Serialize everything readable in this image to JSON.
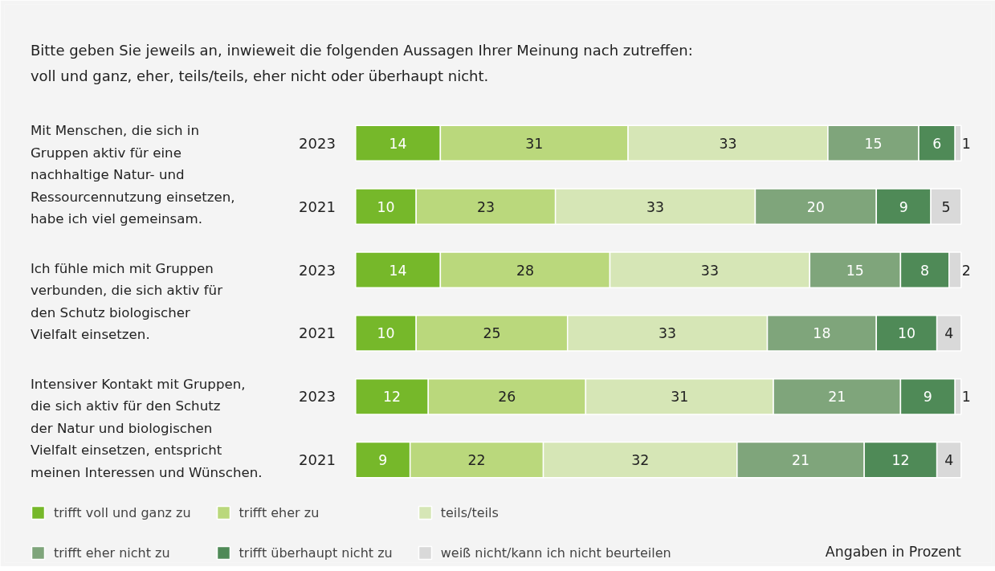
{
  "chart_data": {
    "type": "bar",
    "orientation": "horizontal",
    "stacked": true,
    "data_labels": true,
    "tick_labels": "y",
    "legend": "bottom",
    "grid": false,
    "title": "Bitte geben Sie jeweils an, inwieweit die folgenden Aussagen Ihrer Meinung nach zutreffen:\nvoll und ganz, eher, teils/teils, eher nicht oder überhaupt nicht.",
    "xlim": [
      0,
      100
    ],
    "categories": [
      "2023",
      "2021",
      "2023",
      "2021",
      "2023",
      "2021"
    ],
    "annotations": [
      "Mit Menschen, die sich in Gruppen aktiv für eine nachhaltige Natur- und Ressourcennutzung einsetzen, habe ich viel gemeinsam.",
      "Ich fühle mich mit Gruppen verbunden, die sich aktiv für den Schutz biologischer Vielfalt einsetzen.",
      "Intensiver Kontakt mit Gruppen, die sich aktiv für den Schutz der Natur und biologischen Vielfalt einsetzen, entspricht meinen Interessen und Wünschen.",
      "Angaben in Prozent"
    ],
    "series": [
      {
        "name": "trifft voll und ganz zu",
        "color": "#76b82a",
        "values": [
          14,
          10,
          14,
          10,
          12,
          9
        ]
      },
      {
        "name": "trifft eher zu",
        "color": "#bad87c",
        "values": [
          31,
          23,
          28,
          25,
          26,
          22
        ]
      },
      {
        "name": "teils/teils",
        "color": "#d6e6b6",
        "values": [
          33,
          33,
          33,
          33,
          31,
          32
        ]
      },
      {
        "name": "trifft eher nicht zu",
        "color": "#7fa57b",
        "values": [
          15,
          20,
          15,
          18,
          21,
          21
        ]
      },
      {
        "name": "trifft überhaupt nicht zu",
        "color": "#4f8a57",
        "values": [
          6,
          9,
          8,
          10,
          9,
          12
        ]
      },
      {
        "name": "weiß nicht/kann ich nicht beurteilen",
        "color": "#d9d9d9",
        "values": [
          1,
          5,
          2,
          4,
          1,
          4
        ]
      }
    ]
  }
}
